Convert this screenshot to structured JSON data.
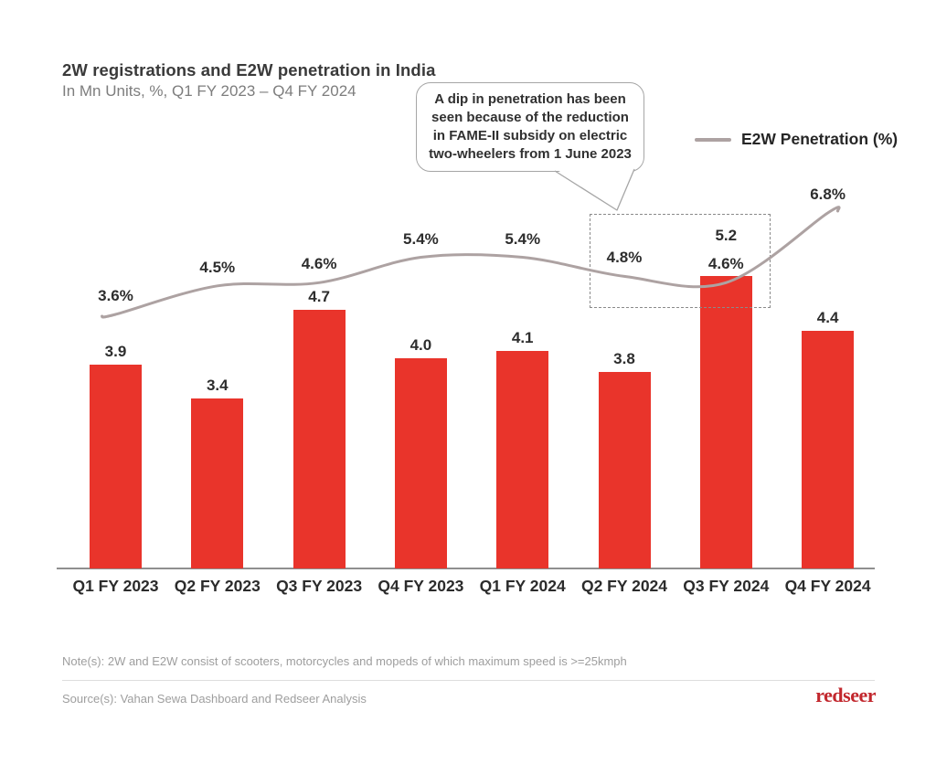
{
  "header": {
    "title": "2W registrations and E2W penetration in India",
    "subtitle": "In Mn Units, %, Q1 FY 2023 – Q4 FY 2024"
  },
  "legend": {
    "label": "E2W Penetration (%)"
  },
  "callout": {
    "text": "A dip in penetration has been seen because of the reduction in FAME-II subsidy on electric two-wheelers from 1 June 2023"
  },
  "chart_data": {
    "type": "bar",
    "title": "2W registrations and E2W penetration in India",
    "subtitle": "In Mn Units, %, Q1 FY 2023 – Q4 FY 2024",
    "categories": [
      "Q1 FY 2023",
      "Q2 FY 2023",
      "Q3 FY 2023",
      "Q4 FY 2023",
      "Q1 FY 2024",
      "Q2 FY 2024",
      "Q3 FY 2024",
      "Q4 FY 2024"
    ],
    "series": [
      {
        "name": "2W registrations (Mn Units)",
        "type": "bar",
        "values": [
          3.9,
          3.4,
          4.7,
          4.0,
          4.1,
          3.8,
          5.2,
          4.4
        ],
        "labels": [
          "3.9",
          "3.4",
          "4.7",
          "4.0",
          "4.1",
          "3.8",
          "5.2",
          "4.4"
        ],
        "color": "#e9342b"
      },
      {
        "name": "E2W Penetration (%)",
        "type": "line",
        "values": [
          3.6,
          4.5,
          4.6,
          5.4,
          5.4,
          4.8,
          4.6,
          6.8
        ],
        "labels": [
          "3.6%",
          "4.5%",
          "4.6%",
          "5.4%",
          "5.4%",
          "4.8%",
          "4.6%",
          "6.8%"
        ],
        "color": "#ada2a2"
      }
    ],
    "grid": false,
    "legend_position": "top-right",
    "highlight_categories": [
      "Q2 FY 2024",
      "Q3 FY 2024"
    ],
    "highlight_style": "dashed-box"
  },
  "footer": {
    "note": "Note(s): 2W and E2W consist of scooters, motorcycles and mopeds of which maximum speed is >=25kmph",
    "source": "Source(s): Vahan Sewa Dashboard and Redseer Analysis",
    "logo": "redseer"
  },
  "colors": {
    "bar": "#e9342b",
    "line": "#ada2a2",
    "logo": "#c2272d"
  }
}
